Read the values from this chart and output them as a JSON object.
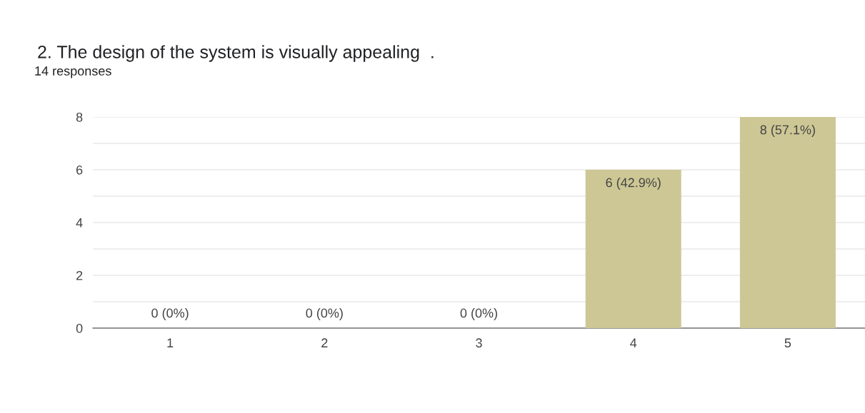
{
  "chart_data": {
    "type": "bar",
    "title": "2. The design of the system is visually appealing  .",
    "subtitle": "14 responses",
    "categories": [
      "1",
      "2",
      "3",
      "4",
      "5"
    ],
    "values": [
      0,
      0,
      0,
      6,
      8
    ],
    "color": "#cdc795",
    "value_labels": [
      "0 (0%)",
      "0 (0%)",
      "0 (0%)",
      "6 (42.9%)",
      "8 (57.1%)"
    ],
    "ylim": [
      0,
      8
    ],
    "yticks": [
      0,
      {
        "value": 1,
        "label": null
      },
      2,
      {
        "value": 3,
        "label": null
      },
      4,
      {
        "value": 5,
        "label": null
      },
      6,
      {
        "value": 7,
        "label": null
      },
      8
    ],
    "grid": "y",
    "legend": false
  }
}
